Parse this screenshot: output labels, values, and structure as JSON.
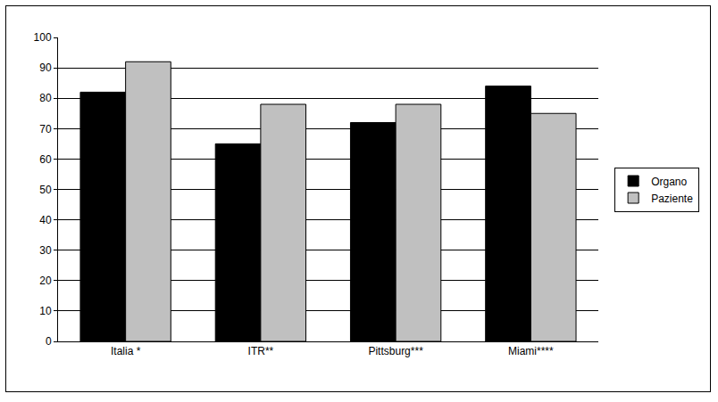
{
  "chart_data": {
    "type": "bar",
    "categories": [
      "Italia *",
      "ITR**",
      "Pittsburg***",
      "Miami****"
    ],
    "series": [
      {
        "name": "Organo",
        "color": "#000000",
        "values": [
          82,
          65,
          72,
          84
        ]
      },
      {
        "name": "Paziente",
        "color": "#c0c0c0",
        "values": [
          92,
          78,
          78,
          75
        ]
      }
    ],
    "ylim": [
      0,
      100
    ],
    "yticks": [
      0,
      10,
      20,
      30,
      40,
      50,
      60,
      70,
      80,
      90,
      100
    ],
    "grid": true,
    "legend": "right"
  }
}
